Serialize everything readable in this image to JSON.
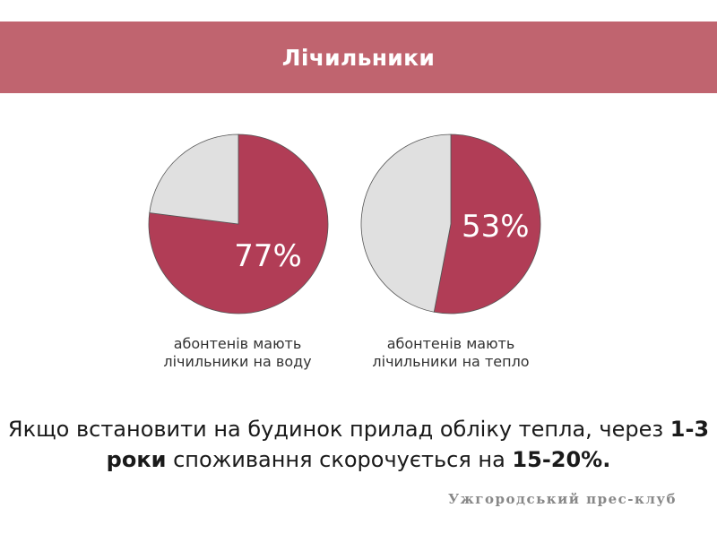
{
  "header": {
    "title": "Лічильники"
  },
  "colors": {
    "banner": "#c0646f",
    "slice_main": "#b13d56",
    "slice_rest": "#e0e0e0"
  },
  "chart_data": [
    {
      "type": "pie",
      "values": [
        77,
        23
      ],
      "labels": [
        "77%",
        ""
      ],
      "caption_line1": "абонтенів мають",
      "caption_line2": "лічильники на воду"
    },
    {
      "type": "pie",
      "values": [
        53,
        47
      ],
      "labels": [
        "53%",
        ""
      ],
      "caption_line1": "абонтенів мають",
      "caption_line2": "лічильники на тепло"
    }
  ],
  "statement": {
    "part1": "Якщо встановити на будинок прилад обліку тепла, через ",
    "bold1": "1-3",
    "part2": "роки",
    "part3": " споживання скорочується на ",
    "bold2": "15-20%."
  },
  "footer": "Ужгородський прес-клуб"
}
